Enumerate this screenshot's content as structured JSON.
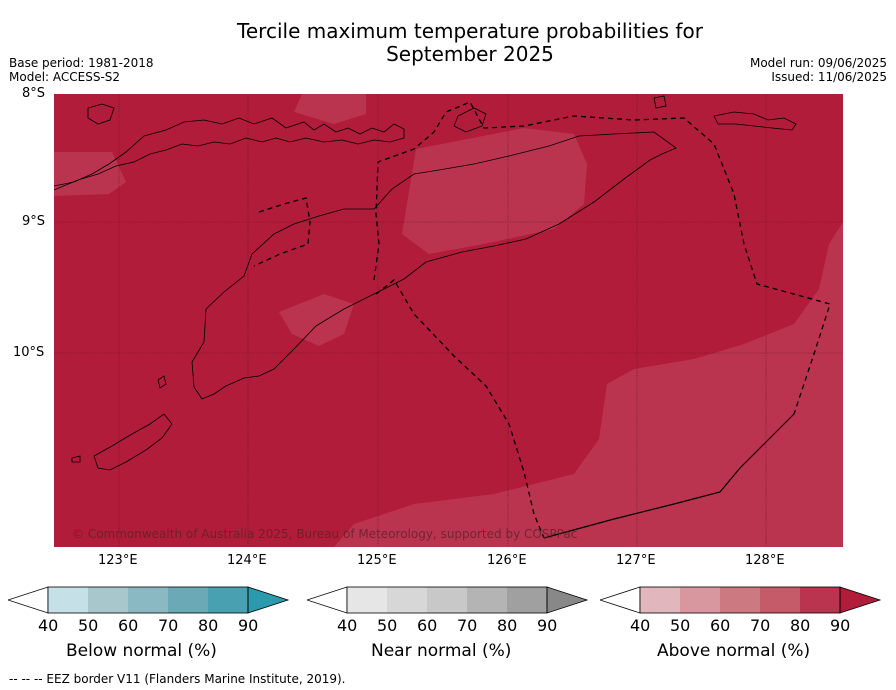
{
  "header": {
    "title_line1": "Tercile maximum temperature probabilities for",
    "title_line2": "September 2025",
    "base_period": "Base period: 1981-2018",
    "model": "Model: ACCESS-S2",
    "model_run": "Model run: 09/06/2025",
    "issued": "Issued: 11/06/2025"
  },
  "map": {
    "lat_labels": [
      "8°S",
      "9°S",
      "10°S"
    ],
    "lon_labels": [
      "123°E",
      "124°E",
      "125°E",
      "126°E",
      "127°E",
      "128°E"
    ],
    "copyright": "© Commonwealth of Australia 2025, Bureau of Meteorology, supported by COSPPac",
    "colors": {
      "above_90": "#b11c3a",
      "above_80": "#ba3450",
      "coast": "#000000",
      "eez": "#000000"
    }
  },
  "colorbars": [
    {
      "label": "Below normal (%)",
      "ticks": [
        "40",
        "50",
        "60",
        "70",
        "80",
        "90"
      ],
      "colors": [
        "#c6e0e8",
        "#a8c7cd",
        "#8ab9c3",
        "#6ca9b6",
        "#48a0b1",
        "#2b9aad"
      ]
    },
    {
      "label": "Near normal (%)",
      "ticks": [
        "40",
        "50",
        "60",
        "70",
        "80",
        "90"
      ],
      "colors": [
        "#e6e6e6",
        "#d7d7d7",
        "#c8c8c8",
        "#b4b4b4",
        "#a0a0a0",
        "#888888"
      ]
    },
    {
      "label": "Above normal (%)",
      "ticks": [
        "40",
        "50",
        "60",
        "70",
        "80",
        "90"
      ],
      "colors": [
        "#e1b6bd",
        "#d8969f",
        "#cd7981",
        "#c55a68",
        "#ba3450",
        "#b11c3a"
      ]
    }
  ],
  "footnote": "--  --  -- EEZ border V11 (Flanders Marine Institute, 2019)."
}
